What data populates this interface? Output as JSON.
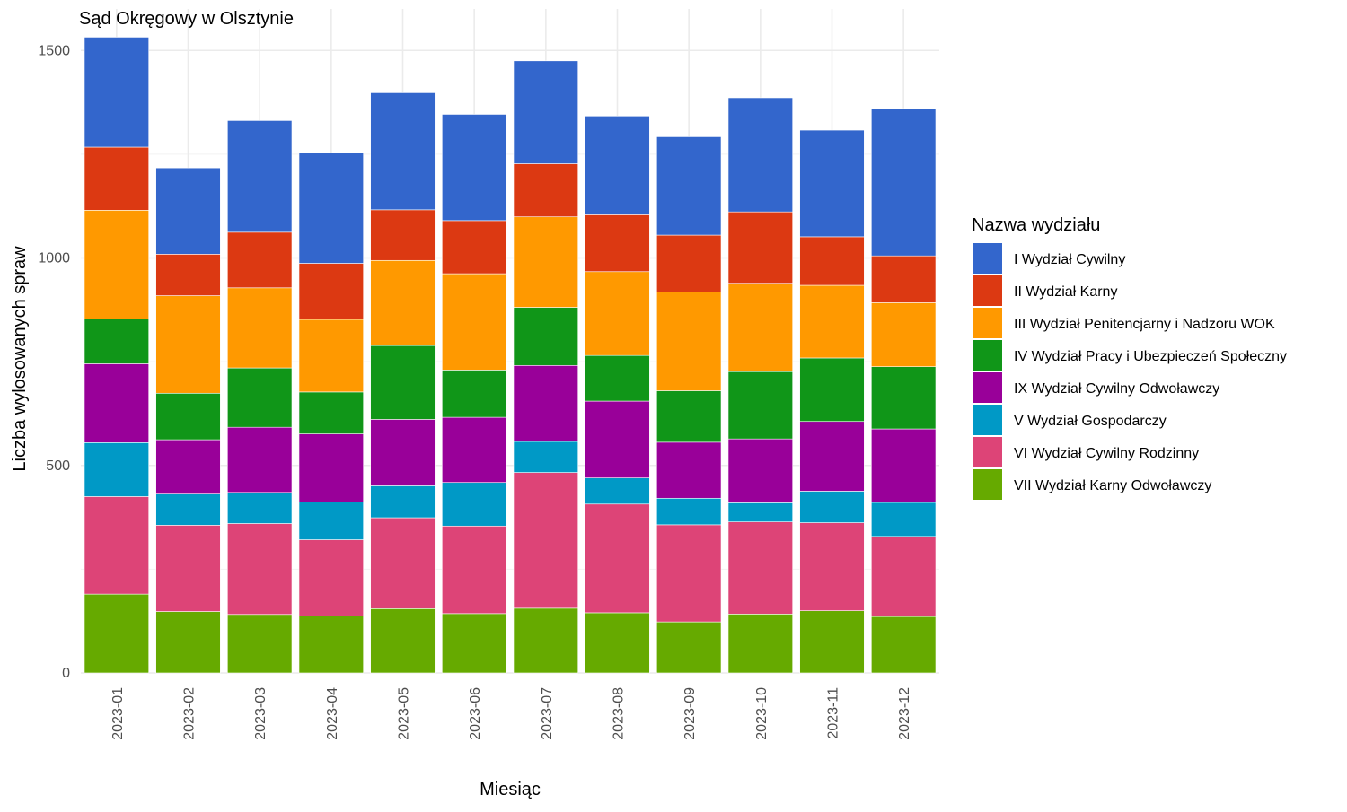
{
  "chart_data": {
    "type": "bar",
    "stacked": true,
    "title": "Sąd Okręgowy w Olsztynie",
    "xlabel": "Miesiąc",
    "ylabel": "Liczba wylosowanych spraw",
    "ylim": [
      0,
      1500
    ],
    "yticks": [
      0,
      500,
      1000,
      1500
    ],
    "grid": true,
    "legend": {
      "title": "Nazwa wydziału",
      "position": "right"
    },
    "categories": [
      "2023-01",
      "2023-02",
      "2023-03",
      "2023-04",
      "2023-05",
      "2023-06",
      "2023-07",
      "2023-08",
      "2023-09",
      "2023-10",
      "2023-11",
      "2023-12"
    ],
    "series": [
      {
        "name": "VII Wydział Karny Odwoławczy",
        "color": "#66aa00",
        "values": [
          190,
          148,
          141,
          137,
          155,
          143,
          156,
          145,
          123,
          142,
          150,
          136
        ]
      },
      {
        "name": "VI Wydział Cywilny Rodzinny",
        "color": "#dd4477",
        "values": [
          235,
          208,
          219,
          184,
          219,
          211,
          327,
          262,
          234,
          222,
          212,
          193
        ]
      },
      {
        "name": "V Wydział Gospodarczy",
        "color": "#0099c6",
        "values": [
          130,
          75,
          75,
          91,
          77,
          105,
          75,
          63,
          64,
          46,
          76,
          82
        ]
      },
      {
        "name": "IX Wydział Cywilny Odwoławczy",
        "color": "#990099",
        "values": [
          190,
          131,
          157,
          164,
          160,
          157,
          183,
          185,
          135,
          154,
          168,
          177
        ]
      },
      {
        "name": "IV Wydział Pracy i Ubezpieczeń Społeczny",
        "color": "#109618",
        "values": [
          108,
          112,
          143,
          101,
          178,
          114,
          140,
          110,
          124,
          162,
          153,
          150
        ]
      },
      {
        "name": "III Wydział Penitencjarny i Nadzoru WOK",
        "color": "#ff9900",
        "values": [
          262,
          235,
          193,
          175,
          205,
          232,
          218,
          202,
          238,
          213,
          175,
          154
        ]
      },
      {
        "name": "II Wydział Karny",
        "color": "#dc3912",
        "values": [
          152,
          100,
          134,
          135,
          122,
          128,
          128,
          137,
          137,
          172,
          117,
          113
        ]
      },
      {
        "name": "I Wydział Cywilny",
        "color": "#3366cc",
        "values": [
          265,
          208,
          269,
          266,
          282,
          256,
          248,
          238,
          237,
          275,
          257,
          355
        ]
      }
    ]
  }
}
